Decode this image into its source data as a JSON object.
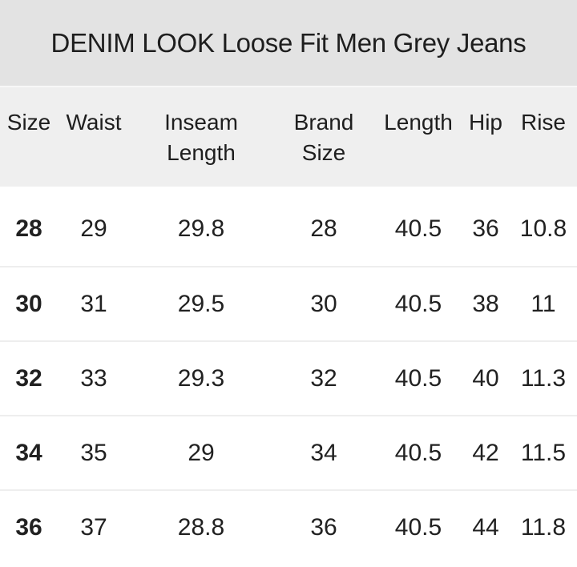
{
  "title_bar": {
    "title": "DENIM LOOK Loose Fit Men Grey Jeans"
  },
  "size_chart": {
    "columns": [
      {
        "label": "Size"
      },
      {
        "label": "Waist"
      },
      {
        "label": "Inseam Length"
      },
      {
        "label": "Brand Size"
      },
      {
        "label": "Length"
      },
      {
        "label": "Hip"
      },
      {
        "label": "Rise"
      }
    ],
    "rows": [
      [
        "28",
        "29",
        "29.8",
        "28",
        "40.5",
        "36",
        "10.8"
      ],
      [
        "30",
        "31",
        "29.5",
        "30",
        "40.5",
        "38",
        "11"
      ],
      [
        "32",
        "33",
        "29.3",
        "32",
        "40.5",
        "40",
        "11.3"
      ],
      [
        "34",
        "35",
        "29",
        "34",
        "40.5",
        "42",
        "11.5"
      ],
      [
        "36",
        "37",
        "28.8",
        "36",
        "40.5",
        "44",
        "11.8"
      ]
    ]
  },
  "colors": {
    "title_bar_bg": "#e3e3e3",
    "header_bg": "#efefef",
    "row_bg": "#ffffff",
    "divider": "#eeeeee",
    "text": "#212121"
  }
}
